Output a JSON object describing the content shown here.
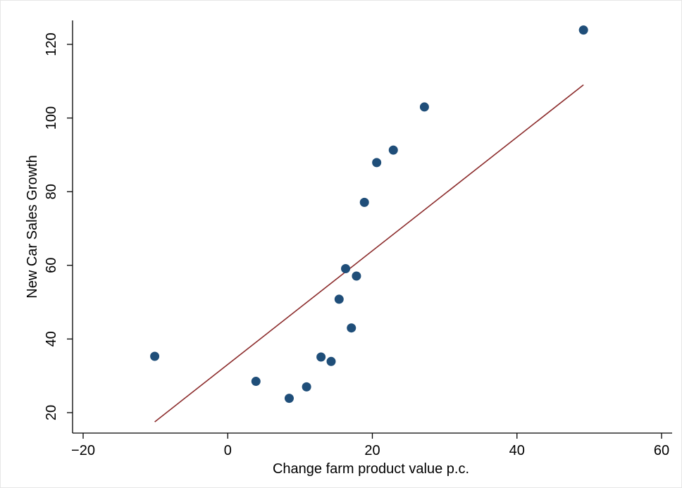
{
  "chart_data": {
    "type": "scatter",
    "title": "",
    "xlabel": "Change farm product value p.c.",
    "ylabel": "New Car Sales Growth",
    "xlim": [
      -20,
      60
    ],
    "ylim": [
      20,
      125
    ],
    "xticks": [
      -20,
      0,
      20,
      40,
      60
    ],
    "xtick_labels": [
      "−20",
      "0",
      "20",
      "40",
      "60"
    ],
    "yticks": [
      20,
      40,
      60,
      80,
      100,
      120
    ],
    "ytick_labels": [
      "20",
      "40",
      "60",
      "80",
      "100",
      "120"
    ],
    "grid": false,
    "legend": "none",
    "points": [
      {
        "x": -10.1,
        "y": 35.3
      },
      {
        "x": 3.9,
        "y": 28.5
      },
      {
        "x": 8.5,
        "y": 23.9
      },
      {
        "x": 10.9,
        "y": 27.0
      },
      {
        "x": 12.9,
        "y": 35.1
      },
      {
        "x": 14.3,
        "y": 33.9
      },
      {
        "x": 15.4,
        "y": 50.8
      },
      {
        "x": 16.3,
        "y": 59.1
      },
      {
        "x": 17.1,
        "y": 43.0
      },
      {
        "x": 17.8,
        "y": 57.1
      },
      {
        "x": 18.9,
        "y": 77.1
      },
      {
        "x": 20.6,
        "y": 87.9
      },
      {
        "x": 22.9,
        "y": 91.3
      },
      {
        "x": 27.2,
        "y": 103.0
      },
      {
        "x": 49.2,
        "y": 123.9
      }
    ],
    "fit_line": {
      "x": [
        -10.1,
        49.2
      ],
      "y": [
        17.5,
        109.0
      ]
    },
    "colors": {
      "points": "#1f4e79",
      "fit_line": "#8b2a2a",
      "axis": "#000000"
    }
  }
}
